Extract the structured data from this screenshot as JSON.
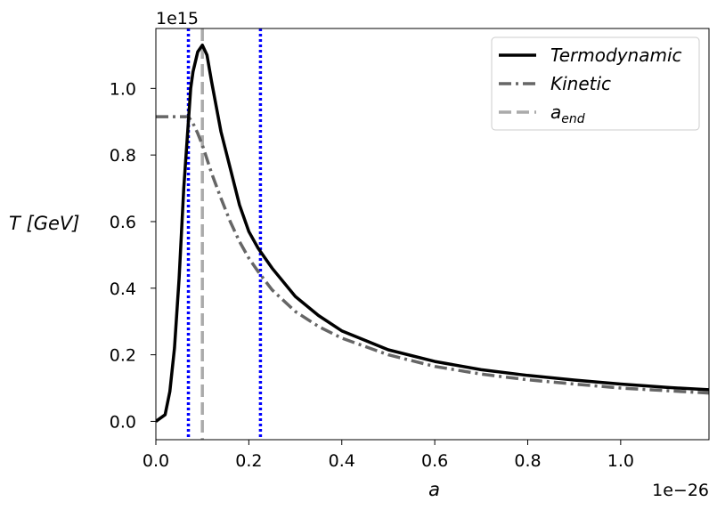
{
  "chart_data": {
    "type": "line",
    "title": "",
    "xlabel": "a",
    "ylabel": "T [GeV]",
    "x_offset_text": "1e−26",
    "y_offset_text": "1e15",
    "xlim": [
      0.0,
      1.19
    ],
    "ylim": [
      -0.055,
      1.18
    ],
    "xticks": [
      0.0,
      0.2,
      0.4,
      0.6,
      0.8,
      1.0
    ],
    "xtick_labels": [
      "0.0",
      "0.2",
      "0.4",
      "0.6",
      "0.8",
      "1.0"
    ],
    "yticks": [
      0.0,
      0.2,
      0.4,
      0.6,
      0.8,
      1.0
    ],
    "ytick_labels": [
      "0.0",
      "0.2",
      "0.4",
      "0.6",
      "0.8",
      "1.0"
    ],
    "grid": false,
    "legend_position": "top-right",
    "series": [
      {
        "name": "Termodynamic",
        "style": "solid",
        "color": "#000000",
        "x": [
          0.0,
          0.02,
          0.03,
          0.04,
          0.05,
          0.06,
          0.065,
          0.07,
          0.075,
          0.08,
          0.09,
          0.1,
          0.11,
          0.12,
          0.14,
          0.16,
          0.18,
          0.2,
          0.22,
          0.25,
          0.3,
          0.35,
          0.4,
          0.5,
          0.6,
          0.7,
          0.8,
          0.9,
          1.0,
          1.1,
          1.19
        ],
        "y": [
          0.0,
          0.02,
          0.09,
          0.22,
          0.43,
          0.7,
          0.8,
          0.9,
          1.0,
          1.05,
          1.11,
          1.13,
          1.1,
          1.02,
          0.87,
          0.76,
          0.65,
          0.57,
          0.52,
          0.46,
          0.375,
          0.318,
          0.272,
          0.215,
          0.18,
          0.155,
          0.138,
          0.124,
          0.112,
          0.102,
          0.095
        ]
      },
      {
        "name": "Kinetic",
        "style": "dashdot",
        "color": "#666666",
        "x": [
          0.0,
          0.02,
          0.04,
          0.06,
          0.07,
          0.08,
          0.09,
          0.1,
          0.12,
          0.14,
          0.16,
          0.18,
          0.2,
          0.22,
          0.25,
          0.3,
          0.35,
          0.4,
          0.5,
          0.6,
          0.7,
          0.8,
          0.9,
          1.0,
          1.1,
          1.19
        ],
        "y": [
          0.915,
          0.915,
          0.915,
          0.915,
          0.915,
          0.895,
          0.865,
          0.83,
          0.745,
          0.67,
          0.6,
          0.54,
          0.49,
          0.45,
          0.395,
          0.33,
          0.285,
          0.25,
          0.2,
          0.165,
          0.142,
          0.125,
          0.112,
          0.1,
          0.092,
          0.085
        ]
      }
    ],
    "vertical_lines": [
      {
        "name": "a_end",
        "x": 0.1,
        "style": "dashed",
        "color": "#aaaaaa"
      },
      {
        "name": "marker-1",
        "x": 0.07,
        "style": "dotted",
        "color": "#0000ff"
      },
      {
        "name": "marker-2",
        "x": 0.225,
        "style": "dotted",
        "color": "#0000ff"
      }
    ],
    "legend": [
      {
        "label": "Termodynamic",
        "style": "solid",
        "color": "#000000"
      },
      {
        "label": "Kinetic",
        "style": "dashdot",
        "color": "#666666"
      },
      {
        "label": "a",
        "subscript": "end",
        "style": "dashed",
        "color": "#aaaaaa"
      }
    ]
  }
}
